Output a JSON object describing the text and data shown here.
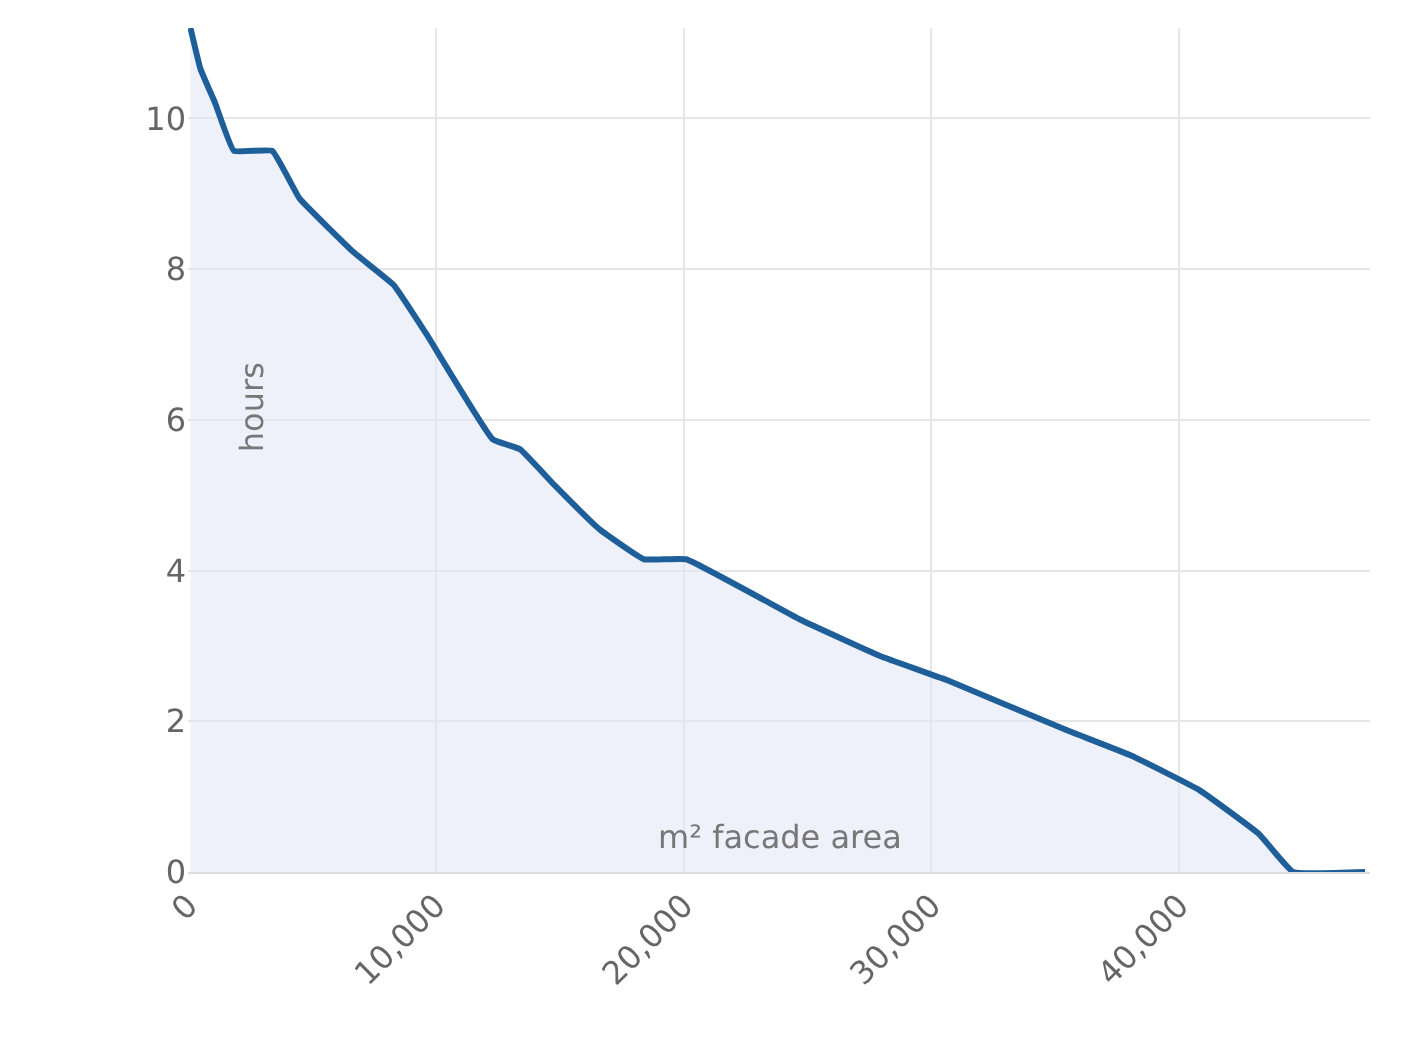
{
  "chart_data": {
    "type": "area",
    "xlabel": "m² facade area",
    "ylabel": "hours",
    "x": [
      100,
      500,
      1100,
      1850,
      3400,
      4500,
      6700,
      8300,
      9600,
      12300,
      13400,
      14800,
      16600,
      18400,
      20100,
      24700,
      27900,
      30600,
      35400,
      38100,
      40800,
      43200,
      44600,
      47500
    ],
    "series": [
      {
        "color": "#1f5f99",
        "values": [
          11.2,
          10.66,
          10.2,
          9.57,
          9.57,
          8.94,
          8.22,
          7.79,
          7.15,
          5.74,
          5.61,
          5.13,
          4.55,
          4.15,
          4.15,
          3.35,
          2.87,
          2.55,
          1.89,
          1.54,
          1.09,
          0.51,
          0,
          0
        ]
      }
    ],
    "xlim": [
      0,
      47700
    ],
    "ylim": [
      0,
      11.2
    ],
    "xticks": [
      0,
      {
        "value": 10000,
        "label": "10,000"
      },
      {
        "value": 20000,
        "label": "20,000"
      },
      {
        "value": 30000,
        "label": "30,000"
      },
      {
        "value": 40000,
        "label": "40,000"
      }
    ],
    "yticks": [
      0,
      2,
      4,
      6,
      8,
      10
    ],
    "grid": true,
    "line_style": "solid"
  }
}
